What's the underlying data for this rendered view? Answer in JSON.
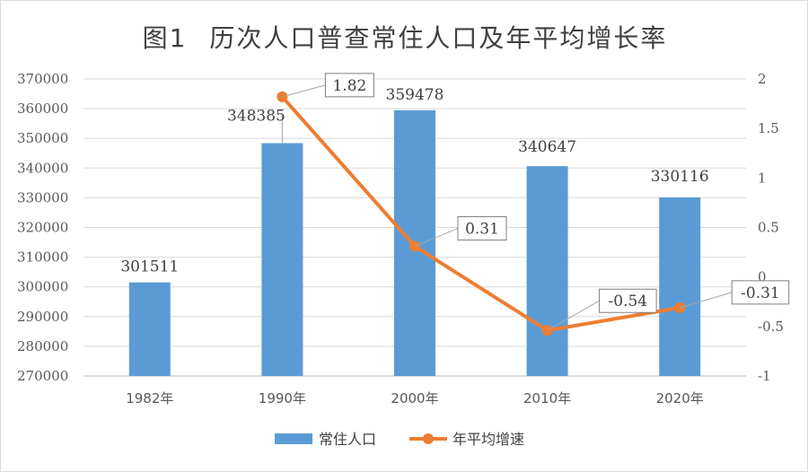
{
  "chart_data": {
    "type": "bar+line",
    "title": "图1    历次人口普查常住人口及年平均增长率",
    "categories": [
      "1982年",
      "1990年",
      "2000年",
      "2010年",
      "2020年"
    ],
    "series": [
      {
        "name": "常住人口",
        "type": "bar",
        "axis": "left",
        "color": "#5b9bd5",
        "values": [
          301511,
          348385,
          359478,
          340647,
          330116
        ]
      },
      {
        "name": "年平均增速",
        "type": "line",
        "axis": "right",
        "color": "#ed7d31",
        "values": [
          null,
          1.82,
          0.31,
          -0.54,
          -0.31
        ]
      }
    ],
    "left_axis": {
      "min": 270000,
      "max": 370000,
      "step": 10000,
      "ticks": [
        "270000",
        "280000",
        "290000",
        "300000",
        "310000",
        "320000",
        "330000",
        "340000",
        "350000",
        "360000",
        "370000"
      ]
    },
    "right_axis": {
      "min": -1,
      "max": 2,
      "step": 0.5,
      "ticks": [
        "-1",
        "-0.5",
        "0",
        "0.5",
        "1",
        "1.5",
        "2"
      ]
    },
    "bar_labels": [
      "301511",
      "348385",
      "359478",
      "340647",
      "330116"
    ],
    "line_labels": [
      "",
      "1.82",
      "0.31",
      "-0.54",
      "-0.31"
    ],
    "grid": true,
    "legend": "bottom"
  }
}
